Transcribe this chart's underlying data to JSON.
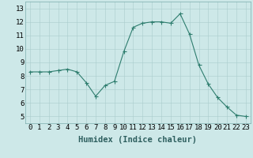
{
  "x": [
    0,
    1,
    2,
    3,
    4,
    5,
    6,
    7,
    8,
    9,
    10,
    11,
    12,
    13,
    14,
    15,
    16,
    17,
    18,
    19,
    20,
    21,
    22,
    23
  ],
  "y": [
    8.3,
    8.3,
    8.3,
    8.4,
    8.5,
    8.3,
    7.5,
    6.5,
    7.3,
    7.6,
    9.8,
    11.6,
    11.9,
    12.0,
    12.0,
    11.9,
    12.6,
    11.1,
    8.8,
    7.4,
    6.4,
    5.7,
    5.1,
    5.0
  ],
  "line_color": "#2e7d6e",
  "marker": "D",
  "marker_size": 1.8,
  "background_color": "#cde8e8",
  "grid_color": "#aacccc",
  "xlabel": "Humidex (Indice chaleur)",
  "tick_fontsize": 6.5,
  "xlabel_fontsize": 7.5,
  "xlim": [
    -0.5,
    23.5
  ],
  "ylim": [
    4.5,
    13.5
  ],
  "yticks": [
    5,
    6,
    7,
    8,
    9,
    10,
    11,
    12,
    13
  ],
  "xticks": [
    0,
    1,
    2,
    3,
    4,
    5,
    6,
    7,
    8,
    9,
    10,
    11,
    12,
    13,
    14,
    15,
    16,
    17,
    18,
    19,
    20,
    21,
    22,
    23
  ]
}
